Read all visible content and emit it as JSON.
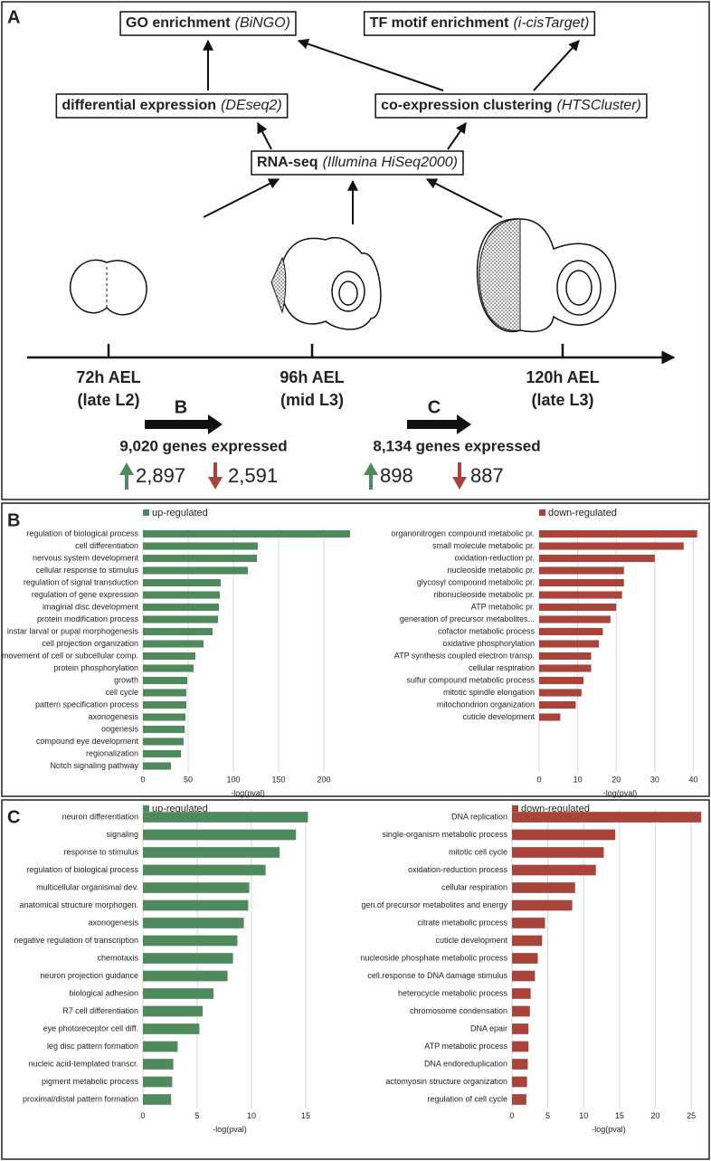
{
  "panels": [
    "A",
    "B",
    "C"
  ],
  "diagram": {
    "boxes": [
      {
        "name": "GO enrichment",
        "tool": "(BiNGO)"
      },
      {
        "name": "TF motif enrichment",
        "tool": "(i-cisTarget)"
      },
      {
        "name": "differential expression",
        "tool": "(DEseq2)"
      },
      {
        "name": "co-expression clustering",
        "tool": "(HTSCluster)"
      },
      {
        "name": "RNA-seq",
        "tool": "(Illumina HiSeq2000)"
      }
    ],
    "timepoints": [
      {
        "time": "72h AEL",
        "stage": "(late L2)"
      },
      {
        "time": "96h AEL",
        "stage": "(mid L3)"
      },
      {
        "time": "120h AEL",
        "stage": "(late L3)"
      }
    ],
    "transitions": [
      {
        "label": "B",
        "expressed": "9,020 genes expressed",
        "up": "2,897",
        "down": "2,591"
      },
      {
        "label": "C",
        "expressed": "8,134 genes expressed",
        "up": "898",
        "down": "887"
      }
    ]
  },
  "chart_data": [
    {
      "type": "hbar",
      "categories": [
        "regulation of biological process",
        "cell differentiation",
        "nervous system development",
        "cellular response to stimulus",
        "regulation of signal transduction",
        "regulation of gene expression",
        "imaginal disc development",
        "protein modification process",
        "instar larval or pupal morphogenesis",
        "cell projection organization",
        "movement of cell or subcellular comp.",
        "protein phosphorylation",
        "growth",
        "cell cycle",
        "pattern specification process",
        "axonogenesis",
        "oogenesis",
        "compound eye development",
        "regionalization",
        "Notch signaling pathway"
      ],
      "series": [
        {
          "name": "up-regulated",
          "color": "#4f8a5d",
          "values": [
            229,
            127,
            126,
            116,
            86,
            85,
            84,
            83,
            77,
            67,
            58,
            56,
            49,
            48,
            48,
            47,
            46,
            45,
            42,
            31
          ]
        }
      ],
      "xlim": [
        0,
        232
      ],
      "xticks": [
        0,
        50,
        100,
        150,
        200
      ],
      "xlabel": "-log(pval)",
      "grid": true
    },
    {
      "type": "hbar",
      "categories": [
        "organonitrogen compound metabolic pr.",
        "small molecule metabolic pr.",
        "oxidation-reduction pr.",
        "nucleoside metabolic pr.",
        "glycosyl compound metabolic pr.",
        "ribonucleoside metabolic pr.",
        "ATP metabolic pr.",
        "generation of precursor metabolites...",
        "cofactor metabolic process",
        "oxidative phosphorylation",
        "ATP synthesis coupled electron transp.",
        "cellular respiration",
        "sulfur compound metabolic process",
        "mitotic spindle elongation",
        "mitochondrion organization",
        "cuticle development"
      ],
      "series": [
        {
          "name": "down-regulated",
          "color": "#a8443a",
          "values": [
            41,
            37.5,
            30,
            22,
            22,
            21.5,
            20,
            18.5,
            16.5,
            15.5,
            13.5,
            13.5,
            11.5,
            11,
            9.5,
            5.5
          ]
        }
      ],
      "xlim": [
        0,
        42
      ],
      "xticks": [
        0,
        10,
        20,
        30,
        40
      ],
      "xlabel": "-log(pval)",
      "grid": true
    },
    {
      "type": "hbar",
      "categories": [
        "neuron differentiation",
        "signaling",
        "response to stimulus",
        "regulation of biological process",
        "multicellular organismal dev.",
        "anatomical structure morphogen.",
        "axonogenesis",
        "negative regulation of transcription",
        "chemotaxis",
        "neuron projection guidance",
        "biological adhesion",
        "R7 cell differentiation",
        "eye photoreceptor cell diff.",
        "leg disc pattern formation",
        "nucleic acid-templated transcr.",
        "pigment metabolic process",
        "proximal/distal pattern formation"
      ],
      "series": [
        {
          "name": "up-regulated",
          "color": "#4f8a5d",
          "values": [
            15.2,
            14.1,
            12.6,
            11.3,
            9.8,
            9.7,
            9.3,
            8.7,
            8.3,
            7.8,
            6.5,
            5.5,
            5.2,
            3.2,
            2.8,
            2.7,
            2.6
          ]
        }
      ],
      "xlim": [
        0,
        16
      ],
      "xticks": [
        0,
        5,
        10,
        15
      ],
      "xlabel": "-log(pval)",
      "grid": true
    },
    {
      "type": "hbar",
      "categories": [
        "DNA replication",
        "single-organism metabolic process",
        "mitotic cell cycle",
        "oxidation-reduction process",
        "cellular respiration",
        "gen.of precursor metabolites and energy",
        "citrate metabolic process",
        "cuticle development",
        "nucleoside phosphate metabolic process",
        "cell.response to DNA damage stimulus",
        "heterocycle metabolic process",
        "chromosome condensation",
        "DNA epair",
        "ATP metabolic process",
        "DNA endoreduplication",
        "actomyosin structure organization",
        "regulation of cell cycle"
      ],
      "series": [
        {
          "name": "down-regulated",
          "color": "#a8443a",
          "values": [
            26.4,
            14.4,
            12.8,
            11.7,
            8.8,
            8.4,
            4.6,
            4.2,
            3.6,
            3.2,
            2.6,
            2.5,
            2.3,
            2.3,
            2.2,
            2.1,
            2.0
          ]
        }
      ],
      "xlim": [
        0,
        27
      ],
      "xticks": [
        0,
        5,
        10,
        15,
        20,
        25
      ],
      "xlabel": "-log(pval)",
      "grid": true
    }
  ]
}
